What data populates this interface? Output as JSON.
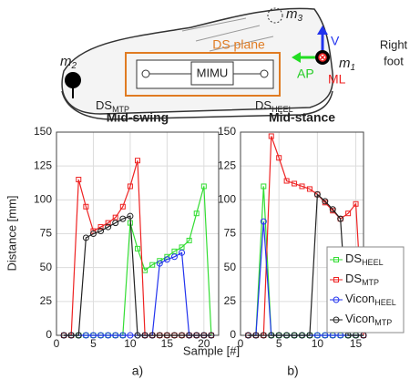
{
  "illustration": {
    "markers": [
      {
        "base": "m",
        "sub": "2"
      },
      {
        "base": "m",
        "sub": "3"
      },
      {
        "base": "m",
        "sub": "1"
      }
    ],
    "plane_label": "DS plane",
    "sensor_label": "MIMU",
    "mtp_label": {
      "base": "DS",
      "sub": "MTP"
    },
    "heel_label": {
      "base": "DS",
      "sub": "HEEL"
    },
    "axes": [
      "V",
      "AP",
      "ML"
    ],
    "foot_label": [
      "Right",
      "foot"
    ]
  },
  "y_label": "Distance [mm]",
  "x_label": "Sample [#]",
  "chart_data": [
    {
      "type": "line",
      "title": "Mid-swing",
      "panel": "a)",
      "x": [
        1,
        2,
        3,
        4,
        5,
        6,
        7,
        8,
        9,
        10,
        11,
        12,
        13,
        14,
        15,
        16,
        17,
        18,
        19,
        20,
        21
      ],
      "series": [
        {
          "color": "#33dd33",
          "marker": "square",
          "values": [
            0,
            0,
            0,
            0,
            0,
            0,
            0,
            0,
            0,
            83,
            64,
            48,
            52,
            55,
            58,
            62,
            65,
            70,
            90,
            110,
            0
          ]
        },
        {
          "color": "#ee2222",
          "marker": "square",
          "values": [
            0,
            0,
            115,
            95,
            77,
            80,
            83,
            87,
            95,
            110,
            129,
            0,
            0,
            0,
            0,
            0,
            0,
            0,
            0,
            0,
            0
          ]
        },
        {
          "color": "#2233ee",
          "marker": "circle",
          "values": [
            0,
            0,
            0,
            0,
            0,
            0,
            0,
            0,
            0,
            0,
            0,
            0,
            0,
            53,
            56,
            58,
            61,
            0,
            0,
            0,
            0
          ]
        },
        {
          "color": "#222222",
          "marker": "circle",
          "values": [
            0,
            0,
            0,
            72,
            75,
            77,
            80,
            83,
            86,
            88,
            0,
            0,
            0,
            0,
            0,
            0,
            0,
            0,
            0,
            0,
            0
          ]
        }
      ],
      "xlim": [
        0,
        22
      ],
      "xticks": [
        0,
        5,
        10,
        15,
        20
      ],
      "ylim": [
        0,
        150
      ],
      "yticks": [
        0,
        25,
        50,
        75,
        100,
        125,
        150
      ],
      "grid": true
    },
    {
      "type": "line",
      "title": "Mid-stance",
      "panel": "b)",
      "x": [
        1,
        2,
        3,
        4,
        5,
        6,
        7,
        8,
        9,
        10,
        11,
        12,
        13,
        14,
        15,
        16
      ],
      "series": [
        {
          "name": "DS",
          "subscript": "HEEL",
          "color": "#33dd33",
          "marker": "square",
          "values": [
            0,
            0,
            110,
            0,
            0,
            0,
            0,
            0,
            0,
            0,
            0,
            0,
            0,
            0,
            0,
            0
          ]
        },
        {
          "name": "DS",
          "subscript": "MTP",
          "color": "#ee2222",
          "marker": "square",
          "values": [
            0,
            0,
            0,
            147,
            131,
            114,
            112,
            110,
            108,
            104,
            98,
            92,
            86,
            90,
            97,
            0
          ]
        },
        {
          "name": "Vicon",
          "subscript": "HEEL",
          "color": "#2233ee",
          "marker": "circle",
          "values": [
            0,
            0,
            84,
            0,
            0,
            0,
            0,
            0,
            0,
            0,
            0,
            0,
            0,
            0,
            0,
            0
          ]
        },
        {
          "name": "Vicon",
          "subscript": "MTP",
          "color": "#222222",
          "marker": "circle",
          "values": [
            0,
            0,
            0,
            0,
            0,
            0,
            0,
            0,
            0,
            104,
            99,
            93,
            86,
            0,
            0,
            0
          ]
        }
      ],
      "xlim": [
        0,
        16
      ],
      "xticks": [
        0,
        5,
        10,
        15
      ],
      "ylim": [
        0,
        150
      ],
      "yticks": [
        0,
        25,
        50,
        75,
        100,
        125,
        150
      ],
      "grid": true,
      "legend": "lower right"
    }
  ]
}
